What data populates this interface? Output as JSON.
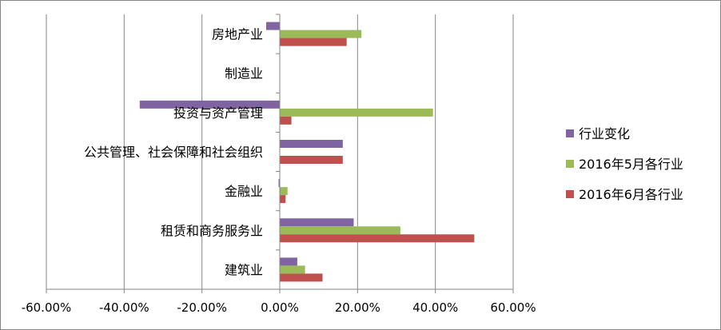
{
  "chart_data": {
    "type": "bar",
    "orientation": "horizontal",
    "categories": [
      "建筑业",
      "租赁和商务服务业",
      "金融业",
      "公共管理、社会保障和社会组织",
      "投资与资产管理",
      "制造业",
      "房地产业"
    ],
    "series": [
      {
        "name": "行业变化",
        "color": "#8064A2",
        "values": [
          0.045,
          0.19,
          -0.003,
          0.162,
          -0.36,
          0.0,
          -0.035
        ]
      },
      {
        "name": "2016年5月各行业",
        "color": "#9BBB59",
        "values": [
          0.065,
          0.31,
          0.02,
          0.0,
          0.394,
          0.0,
          0.21
        ]
      },
      {
        "name": "2016年6月各行业",
        "color": "#C0504D",
        "values": [
          0.11,
          0.5,
          0.015,
          0.162,
          0.03,
          0.0,
          0.172
        ]
      }
    ],
    "xlim": [
      -0.6,
      0.6
    ],
    "xticks": [
      -0.6,
      -0.4,
      -0.2,
      0.0,
      0.2,
      0.4,
      0.6
    ],
    "xtick_labels": [
      "-60.00%",
      "-40.00%",
      "-20.00%",
      "0.00%",
      "20.00%",
      "40.00%",
      "60.00%"
    ],
    "grid": "vertical",
    "legend_position": "right"
  }
}
